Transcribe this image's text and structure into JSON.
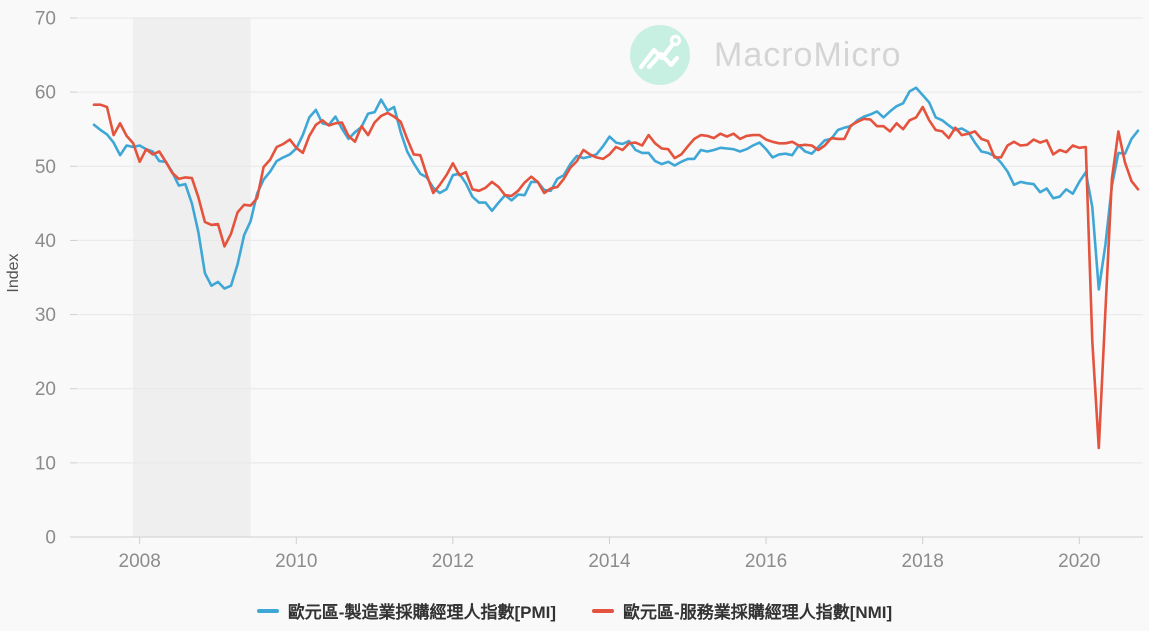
{
  "watermark": {
    "text": "MacroMicro"
  },
  "y_axis": {
    "label": "Index"
  },
  "colors": {
    "background": "#F9F9F9",
    "recession_band": "#EFEFEF",
    "grid_line": "#E7E7E7",
    "axis_line": "#CFCFCF",
    "tick_label": "#8C8C8C",
    "legend_text": "#333333",
    "logo_circle": "#C8F0E2",
    "watermark_text": "#D5D5D5",
    "pmi_blue": "#3FA7D6",
    "nmi_red": "#E4533D"
  },
  "chart_data": {
    "type": "line",
    "title": "",
    "xlabel": "",
    "ylabel": "Index",
    "frequency": "monthly",
    "x_start": "2007-06",
    "x_end": "2020-10",
    "xticks": [
      "2008",
      "2010",
      "2012",
      "2014",
      "2016",
      "2018",
      "2020"
    ],
    "ylim": [
      0,
      70
    ],
    "yticks": [
      0,
      10,
      20,
      30,
      40,
      50,
      60,
      70
    ],
    "grid": "horizontal",
    "legend_position": "bottom-center",
    "recession_band": {
      "from": "2007-12",
      "to": "2009-06"
    },
    "series": [
      {
        "name": "歐元區-製造業採購經理人指數[PMI]",
        "color": "#3FA7D6",
        "values": [
          55.6,
          54.9,
          54.3,
          53.2,
          51.5,
          52.8,
          52.6,
          52.8,
          52.3,
          52.0,
          50.7,
          50.6,
          49.2,
          47.4,
          47.6,
          45.0,
          41.1,
          35.6,
          33.9,
          34.4,
          33.5,
          33.9,
          36.8,
          40.7,
          42.6,
          46.3,
          48.2,
          49.3,
          50.7,
          51.2,
          51.6,
          52.4,
          54.2,
          56.6,
          57.6,
          55.8,
          55.6,
          56.7,
          55.1,
          53.7,
          54.6,
          55.3,
          57.1,
          57.3,
          59.0,
          57.5,
          58.0,
          54.6,
          52.0,
          50.4,
          49.0,
          48.5,
          47.1,
          46.4,
          46.9,
          48.8,
          49.0,
          47.7,
          45.9,
          45.1,
          45.1,
          44.0,
          45.1,
          46.1,
          45.4,
          46.2,
          46.1,
          47.9,
          47.9,
          46.8,
          46.7,
          48.3,
          48.8,
          50.3,
          51.4,
          51.1,
          51.3,
          51.6,
          52.7,
          54.0,
          53.2,
          53.0,
          53.4,
          52.2,
          51.8,
          51.8,
          50.7,
          50.3,
          50.6,
          50.1,
          50.6,
          51.0,
          51.0,
          52.2,
          52.0,
          52.2,
          52.5,
          52.4,
          52.3,
          52.0,
          52.3,
          52.8,
          53.2,
          52.3,
          51.2,
          51.6,
          51.7,
          51.5,
          52.8,
          52.0,
          51.7,
          52.6,
          53.5,
          53.7,
          54.9,
          55.2,
          55.4,
          56.2,
          56.7,
          57.0,
          57.4,
          56.6,
          57.4,
          58.1,
          58.5,
          60.1,
          60.6,
          59.6,
          58.6,
          56.6,
          56.2,
          55.5,
          54.9,
          55.1,
          54.6,
          53.2,
          52.0,
          51.8,
          51.4,
          50.5,
          49.3,
          47.5,
          47.9,
          47.7,
          47.6,
          46.5,
          47.0,
          45.7,
          45.9,
          46.9,
          46.3,
          47.9,
          49.2,
          44.5,
          33.4,
          39.4,
          47.4,
          51.8,
          51.7,
          53.7,
          54.8
        ]
      },
      {
        "name": "歐元區-服務業採購經理人指數[NMI]",
        "color": "#E4533D",
        "values": [
          58.3,
          58.3,
          58.0,
          54.2,
          55.8,
          54.1,
          53.1,
          50.6,
          52.3,
          51.6,
          52.0,
          50.6,
          49.1,
          48.3,
          48.5,
          48.4,
          45.8,
          42.5,
          42.1,
          42.2,
          39.2,
          40.9,
          43.8,
          44.8,
          44.7,
          45.7,
          49.9,
          50.9,
          52.6,
          53.0,
          53.6,
          52.5,
          51.8,
          54.1,
          55.6,
          56.2,
          55.5,
          55.8,
          55.9,
          54.1,
          53.3,
          55.4,
          54.2,
          55.9,
          56.8,
          57.2,
          56.7,
          56.0,
          53.7,
          51.6,
          51.5,
          48.8,
          46.4,
          47.5,
          48.8,
          50.4,
          48.8,
          49.2,
          46.9,
          46.7,
          47.1,
          47.9,
          47.2,
          46.1,
          46.0,
          46.7,
          47.8,
          48.6,
          47.9,
          46.4,
          47.0,
          47.2,
          48.3,
          49.8,
          50.7,
          52.2,
          51.6,
          51.2,
          51.0,
          51.6,
          52.6,
          52.2,
          53.1,
          53.2,
          52.8,
          54.2,
          53.1,
          52.4,
          52.3,
          51.1,
          51.6,
          52.7,
          53.7,
          54.2,
          54.1,
          53.8,
          54.4,
          54.0,
          54.4,
          53.7,
          54.1,
          54.2,
          54.2,
          53.6,
          53.3,
          53.1,
          53.1,
          53.3,
          52.8,
          52.9,
          52.8,
          52.2,
          52.8,
          53.8,
          53.7,
          53.7,
          55.5,
          56.0,
          56.4,
          56.3,
          55.4,
          55.4,
          54.7,
          55.8,
          55.0,
          56.2,
          56.6,
          58.0,
          56.2,
          54.9,
          54.7,
          53.8,
          55.2,
          54.2,
          54.4,
          54.7,
          53.7,
          53.4,
          51.2,
          51.2,
          52.8,
          53.3,
          52.8,
          52.9,
          53.6,
          53.2,
          53.5,
          51.6,
          52.2,
          51.9,
          52.8,
          52.5,
          52.6,
          26.4,
          12.0,
          30.5,
          48.3,
          54.7,
          50.5,
          48.0,
          46.9
        ]
      }
    ]
  }
}
